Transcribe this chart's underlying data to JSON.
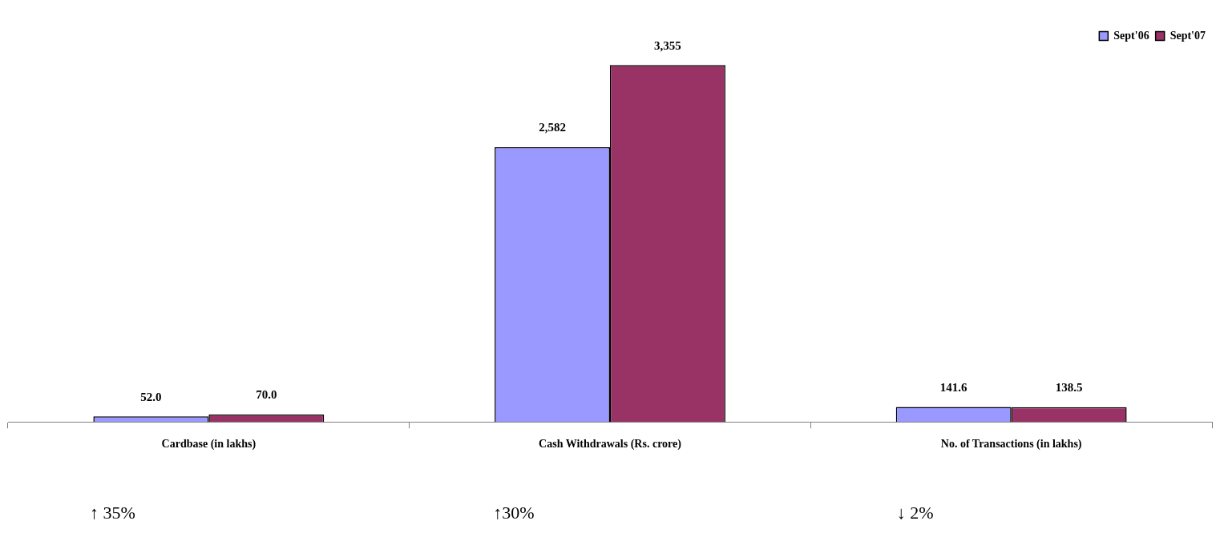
{
  "chart_data": {
    "type": "bar",
    "data_labels": true,
    "legend": "top right",
    "categories": [
      "Cardbase (in lakhs)",
      "Cash Withdrawals (Rs. crore)",
      "No. of Transactions (in lakhs)"
    ],
    "series": [
      {
        "name": "Sept'06",
        "color": "#9999ff",
        "values": [
          52.0,
          2582,
          141.6
        ],
        "value_labels": [
          "52.0",
          "2,582",
          "141.6"
        ]
      },
      {
        "name": "Sept'07",
        "color": "#993366",
        "values": [
          70.0,
          3355,
          138.5
        ],
        "value_labels": [
          "70.0",
          "3,355",
          "138.5"
        ]
      }
    ],
    "annotations": [
      "↑ 35%",
      "↑30%",
      "↓ 2%"
    ]
  }
}
